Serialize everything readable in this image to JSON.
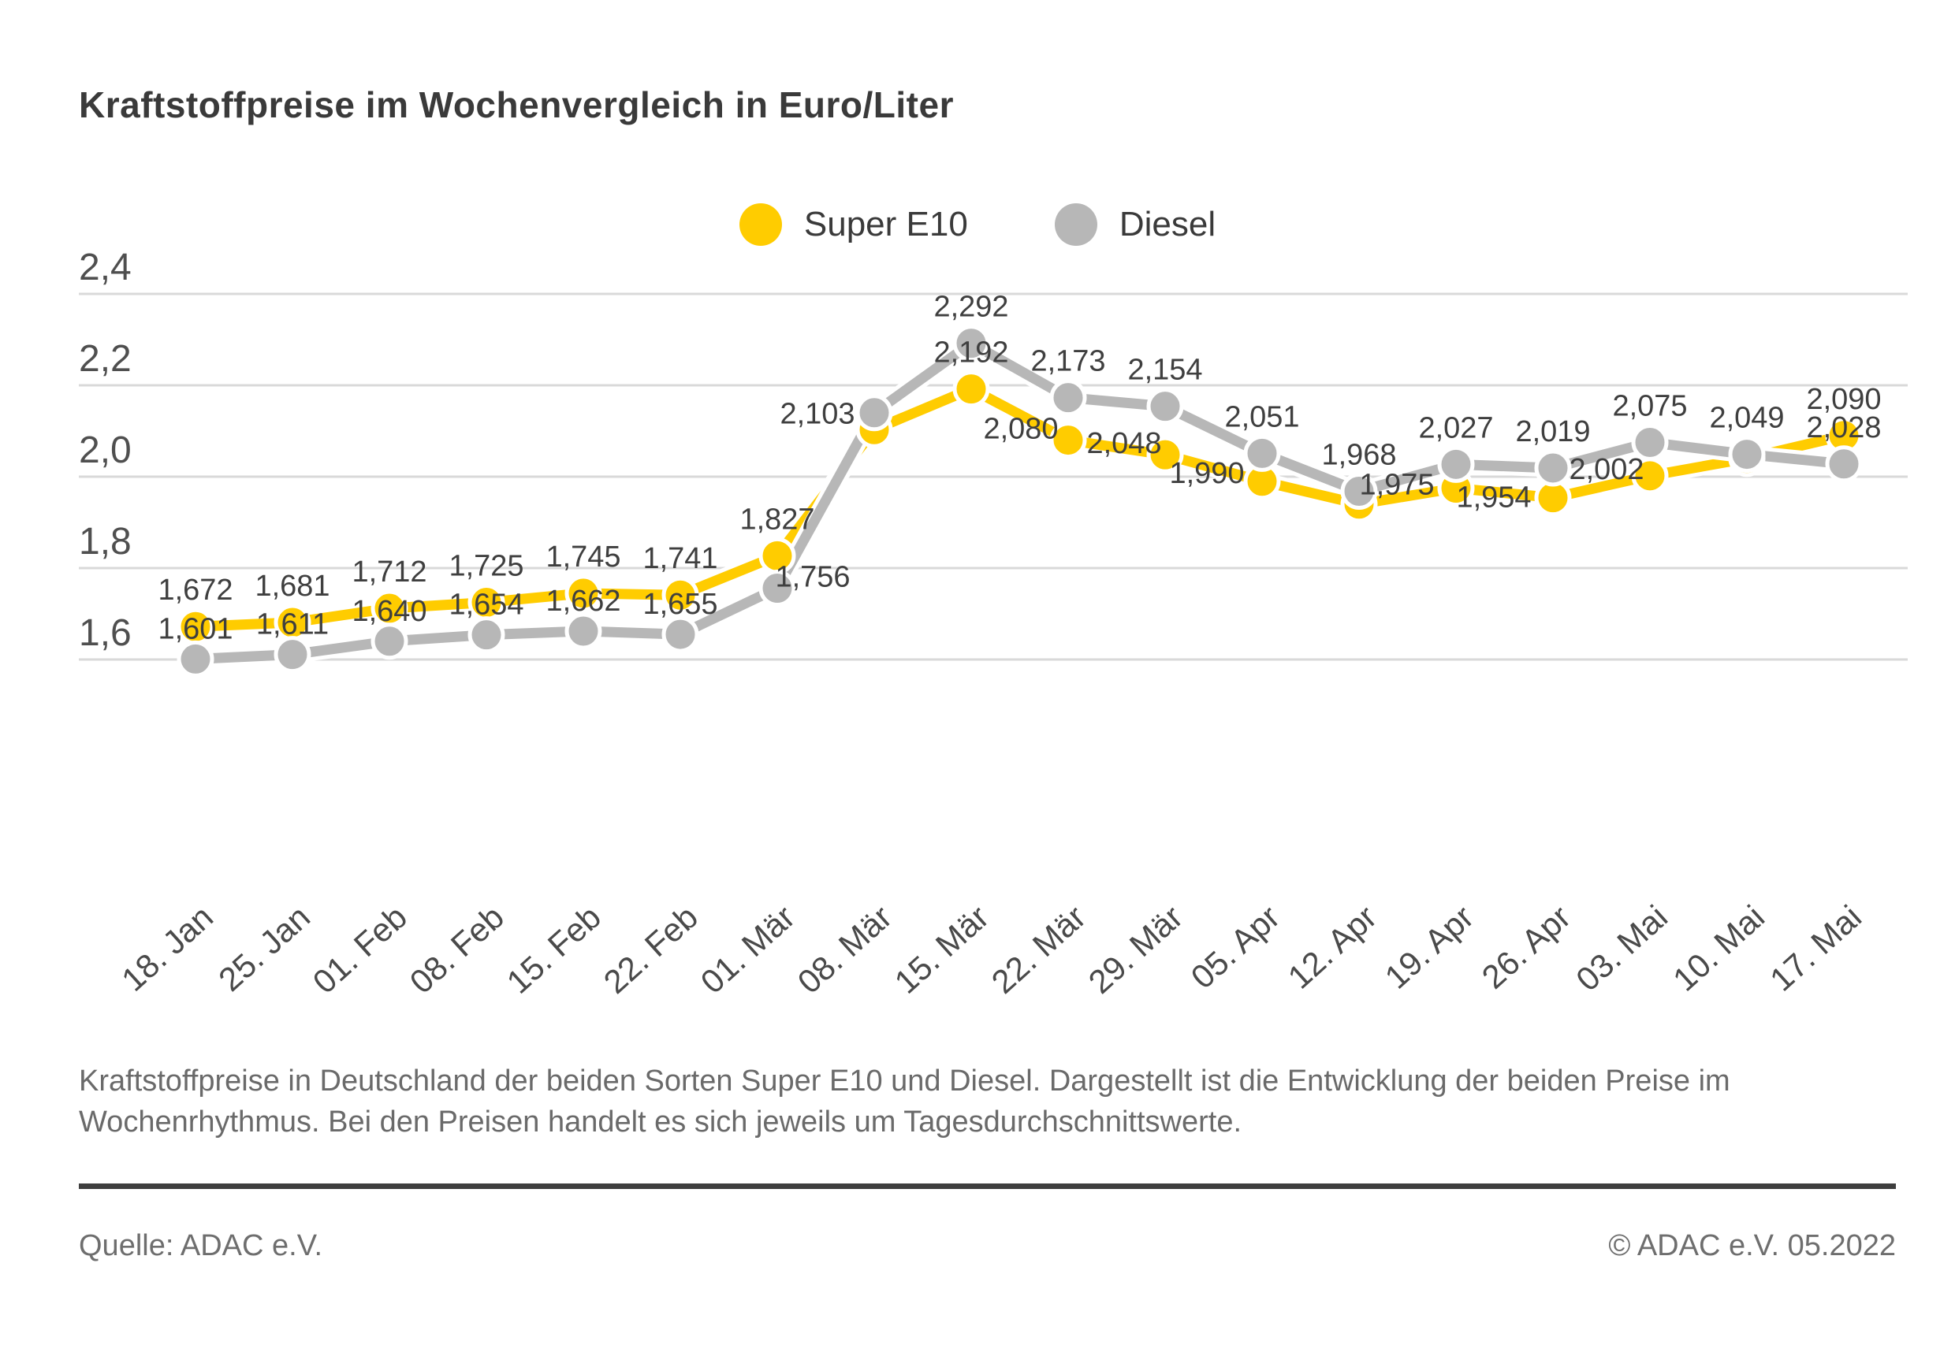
{
  "title": "Kraftstoffpreise im Wochenvergleich in Euro/Liter",
  "legend": [
    {
      "label": "Super E10",
      "color": "#FFCC00"
    },
    {
      "label": "Diesel",
      "color": "#B7B7B7"
    }
  ],
  "footer": {
    "description": "Kraftstoffpreise in Deutschland der beiden Sorten Super E10 und Diesel. Dargestellt ist die Entwicklung der beiden Preise im\nWochenrhythmus. Bei den Preisen handelt es sich jeweils um Tagesdurchschnittswerte.",
    "source": "Quelle: ADAC e.V.",
    "copyright": "© ADAC e.V. 05.2022"
  },
  "chart_data": {
    "type": "line",
    "title": "Kraftstoffpreise im Wochenvergleich in Euro/Liter",
    "unit": "Euro/Liter",
    "grid": "horizontal",
    "legend_position": "top-center",
    "ylim": [
      1.5,
      2.45
    ],
    "yticks": [
      2.4,
      2.2,
      2.0,
      1.8,
      1.6
    ],
    "ytick_labels": [
      "2,4",
      "2,2",
      "2,0",
      "1,8",
      "1,6"
    ],
    "categories": [
      "18. Jan",
      "25. Jan",
      "01. Feb",
      "08. Feb",
      "15. Feb",
      "22. Feb",
      "01. Mär",
      "08. Mär",
      "15. Mär",
      "22. Mär",
      "29. Mär",
      "05. Apr",
      "12. Apr",
      "19. Apr",
      "26. Apr",
      "03. Mai",
      "10. Mai",
      "17. Mai"
    ],
    "series": [
      {
        "name": "Super E10",
        "color": "#FFCC00",
        "values": [
          1.672,
          1.681,
          1.712,
          1.725,
          1.745,
          1.741,
          1.827,
          2.103,
          2.192,
          2.08,
          2.048,
          1.99,
          1.94,
          1.975,
          1.954,
          2.002,
          2.04,
          2.09
        ],
        "labels": [
          "1,672",
          "1,681",
          "1,712",
          "1,725",
          "1,745",
          "1,741",
          "1,827",
          "2,103",
          "2,192",
          "2,080",
          "2,048",
          "1,990",
          "",
          "1,975",
          "1,954",
          "2,002",
          "",
          "2,090"
        ],
        "label_offsets": {
          "7": [
            -72,
            -8
          ],
          "9": [
            -60,
            -2
          ],
          "10": [
            -52,
            -2
          ],
          "11": [
            -70,
            2
          ],
          "13": [
            -75,
            8
          ],
          "14": [
            -75,
            12
          ],
          "15": [
            -55,
            4
          ]
        }
      },
      {
        "name": "Diesel",
        "color": "#B7B7B7",
        "values": [
          1.601,
          1.611,
          1.64,
          1.654,
          1.662,
          1.655,
          1.756,
          2.14,
          2.292,
          2.173,
          2.154,
          2.051,
          1.968,
          2.027,
          2.019,
          2.075,
          2.049,
          2.028
        ],
        "labels": [
          "1,601",
          "1,611",
          "1,640",
          "1,654",
          "1,662",
          "1,655",
          "1,756",
          "",
          "2,292",
          "2,173",
          "2,154",
          "2,051",
          "1,968",
          "2,027",
          "2,019",
          "2,075",
          "2,049",
          "2,028"
        ],
        "label_offsets": {
          "0": [
            0,
            -26
          ],
          "1": [
            0,
            -26
          ],
          "2": [
            0,
            -26
          ],
          "3": [
            0,
            -26
          ],
          "4": [
            0,
            -26
          ],
          "5": [
            0,
            -26
          ],
          "6": [
            45,
            -2
          ]
        }
      }
    ]
  }
}
